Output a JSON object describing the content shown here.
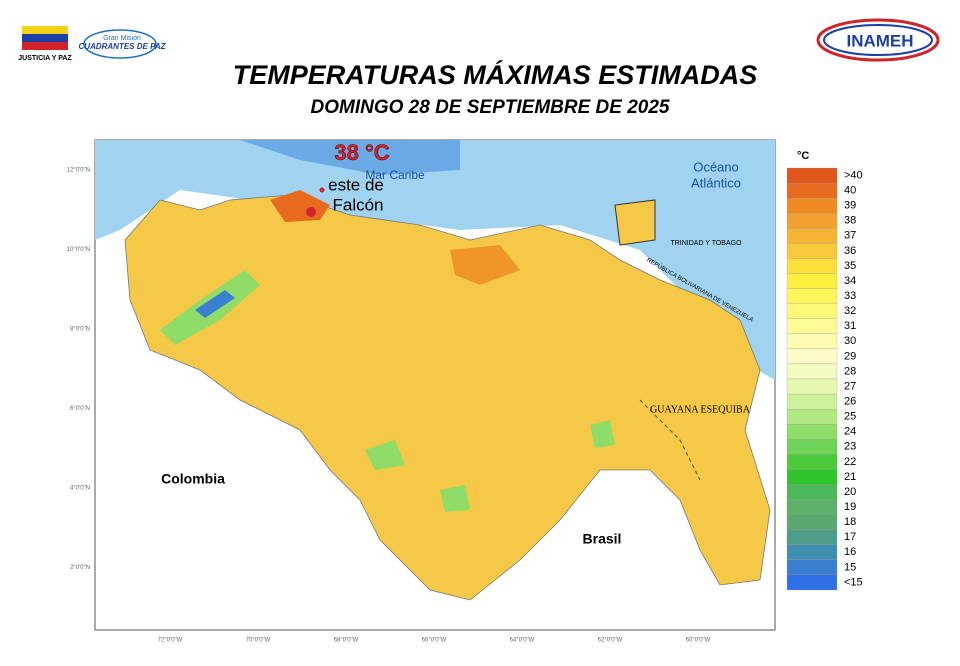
{
  "header": {
    "agency_left": "JUSTICIA Y PAZ",
    "mission_top": "Gran Misión",
    "mission_name": "CUADRANTES DE PAZ",
    "agency_right": "INAMEH",
    "title": "TEMPERATURAS MÁXIMAS ESTIMADAS",
    "subtitle": "DOMINGO 28 DE SEPTIEMBRE DE 2025"
  },
  "map": {
    "max_label": "38 °C",
    "max_place_1": "este de",
    "max_place_2": "Falcón",
    "sea": "Mar Caribe",
    "ocean_1": "Océano",
    "ocean_2": "Atlántico",
    "colombia": "Colombia",
    "brasil": "Brasil",
    "guayana": "GUAYANA ESEQUIBA",
    "trinidad": "TRINIDAD Y TOBAGO",
    "venezuela": "REPÚBLICA BOLIVARIANA DE VENEZUELA",
    "lat_labels": [
      "12°0'0\"N",
      "10°0'0\"N",
      "8°0'0\"N",
      "6°0'0\"N",
      "4°0'0\"N",
      "2°0'0\"N"
    ],
    "lon_labels": [
      "72°0'0\"W",
      "70°0'0\"W",
      "68°0'0\"W",
      "66°0'0\"W",
      "64°0'0\"W",
      "62°0'0\"W",
      "60°0'0\"W"
    ]
  },
  "legend": {
    "unit": "°C",
    "items": [
      {
        "label": ">40",
        "color": "#e0561b"
      },
      {
        "label": "40",
        "color": "#e86a1e"
      },
      {
        "label": "39",
        "color": "#ef8a22"
      },
      {
        "label": "38",
        "color": "#f2a030"
      },
      {
        "label": "37",
        "color": "#f5b533"
      },
      {
        "label": "36",
        "color": "#f8c93a"
      },
      {
        "label": "35",
        "color": "#fbe03a"
      },
      {
        "label": "34",
        "color": "#fdf03c"
      },
      {
        "label": "33",
        "color": "#fef65a"
      },
      {
        "label": "32",
        "color": "#fef87a"
      },
      {
        "label": "31",
        "color": "#fefa98"
      },
      {
        "label": "30",
        "color": "#fefbb3"
      },
      {
        "label": "29",
        "color": "#fdfcc8"
      },
      {
        "label": "28",
        "color": "#f3fbc0"
      },
      {
        "label": "27",
        "color": "#e6f7b0"
      },
      {
        "label": "26",
        "color": "#cdf09a"
      },
      {
        "label": "25",
        "color": "#b2e881"
      },
      {
        "label": "24",
        "color": "#8fdc68"
      },
      {
        "label": "23",
        "color": "#6fd35a"
      },
      {
        "label": "22",
        "color": "#4dca3a"
      },
      {
        "label": "21",
        "color": "#2ec42a"
      },
      {
        "label": "20",
        "color": "#4cb85a"
      },
      {
        "label": "19",
        "color": "#5cb06a"
      },
      {
        "label": "18",
        "color": "#5aa870"
      },
      {
        "label": "17",
        "color": "#4c9c88"
      },
      {
        "label": "16",
        "color": "#3f8fb0"
      },
      {
        "label": "15",
        "color": "#3a7fd0"
      },
      {
        "label": "<15",
        "color": "#2f6fe8"
      }
    ]
  }
}
